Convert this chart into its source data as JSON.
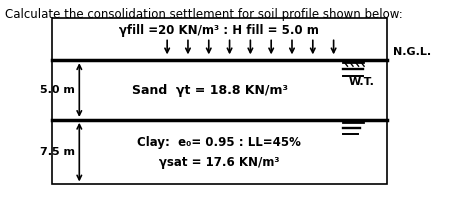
{
  "title": "Calculate the consolidation settlement for soil profile shown below:",
  "fill_label": "γfill =20 KN/m³ : H fill = 5.0 m",
  "ngl_label": "N.G.L.",
  "wt_label": "W.T.",
  "sand_label": "Sand  γt = 18.8 KN/m³",
  "clay_label1": "Clay:  e₀= 0.95 : LL=45%",
  "clay_label2": "γsat = 17.6 KN/m³",
  "sand_depth_label": "5.0 m",
  "clay_depth_label": "7.5 m",
  "bg_color": "#ffffff",
  "box_color": "#000000",
  "arrow_color": "#000000",
  "line_color": "#000000",
  "title_fontsize": 8.5,
  "label_fontsize": 8.5,
  "small_fontsize": 8.0,
  "ngl_fontsize": 8.0
}
